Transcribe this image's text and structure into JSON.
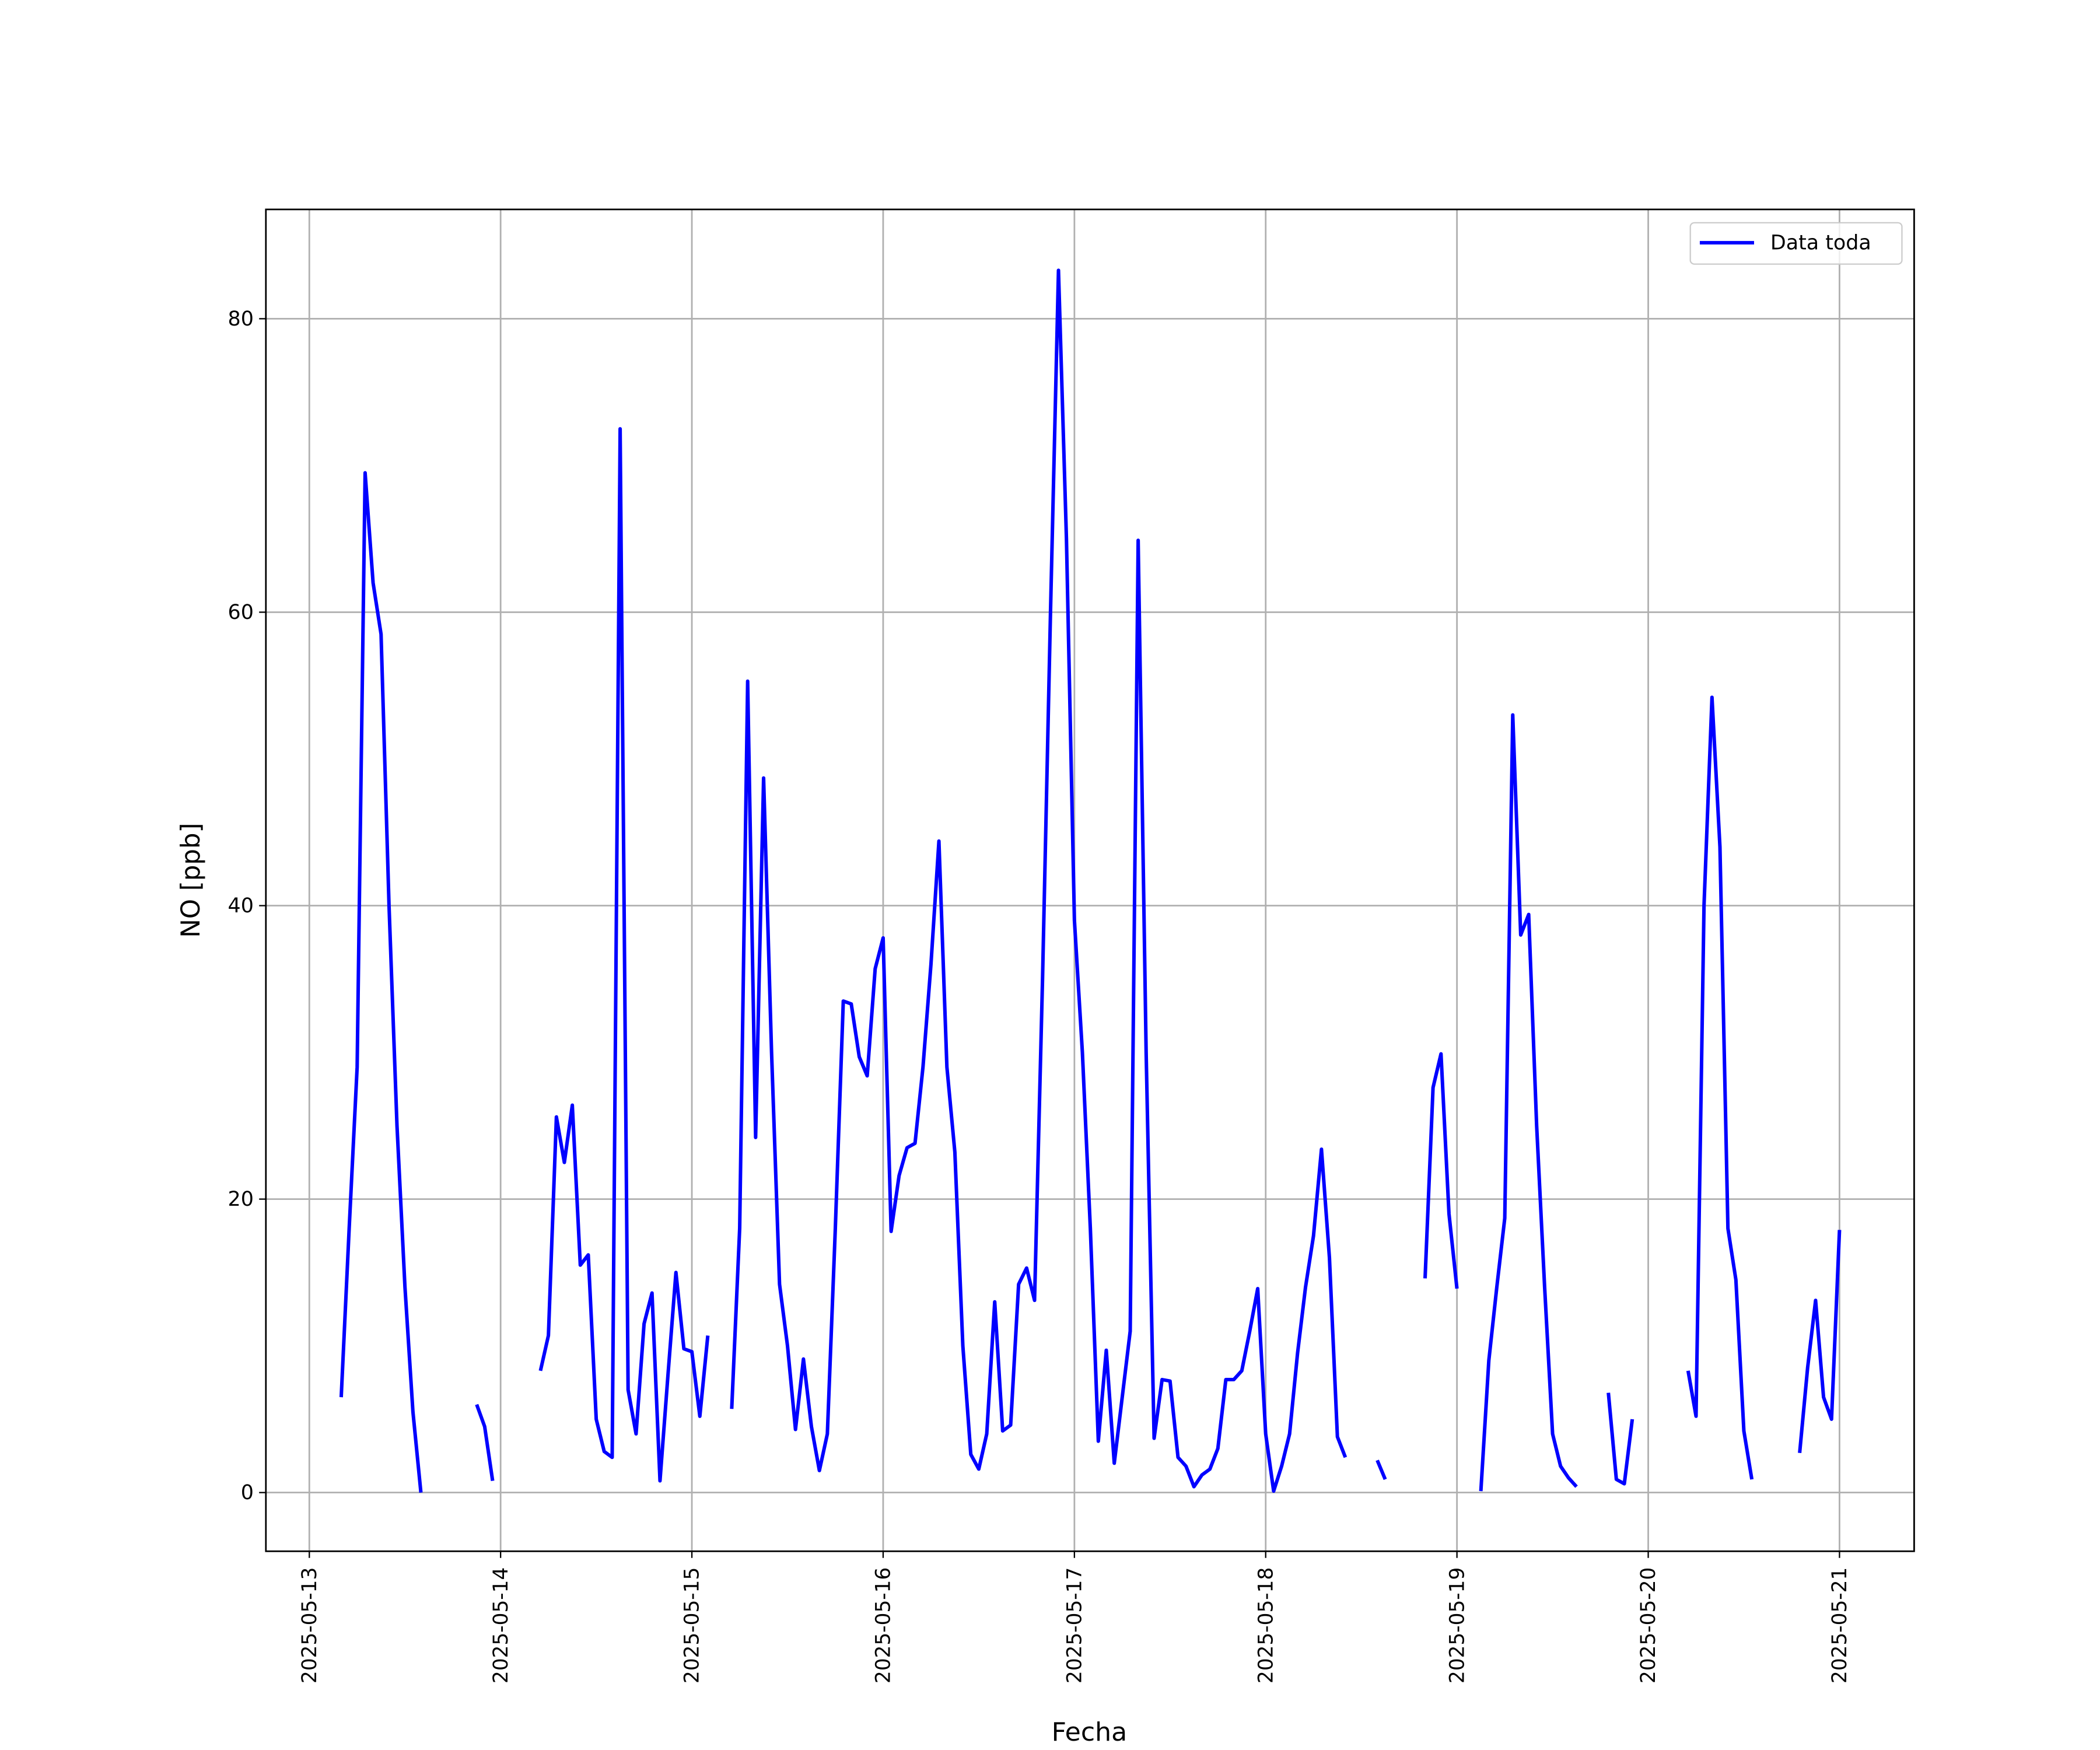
{
  "chart_data": {
    "type": "line",
    "xlabel": "Fecha",
    "ylabel": "NO [ppb]",
    "x": [
      "2025-05-13T04:00",
      "2025-05-13T05:00",
      "2025-05-13T06:00",
      "2025-05-13T07:00",
      "2025-05-13T08:00",
      "2025-05-13T09:00",
      "2025-05-13T10:00",
      "2025-05-13T11:00",
      "2025-05-13T12:00",
      "2025-05-13T13:00",
      "2025-05-13T14:00",
      "2025-05-13T15:00",
      "2025-05-13T16:00",
      "2025-05-13T17:00",
      "2025-05-13T18:00",
      "2025-05-13T19:00",
      "2025-05-13T20:00",
      "2025-05-13T21:00",
      "2025-05-13T22:00",
      "2025-05-13T23:00",
      "2025-05-14T00:00",
      "2025-05-14T01:00",
      "2025-05-14T02:00",
      "2025-05-14T03:00",
      "2025-05-14T04:00",
      "2025-05-14T05:00",
      "2025-05-14T06:00",
      "2025-05-14T07:00",
      "2025-05-14T08:00",
      "2025-05-14T09:00",
      "2025-05-14T10:00",
      "2025-05-14T11:00",
      "2025-05-14T12:00",
      "2025-05-14T13:00",
      "2025-05-14T14:00",
      "2025-05-14T15:00",
      "2025-05-14T16:00",
      "2025-05-14T17:00",
      "2025-05-14T18:00",
      "2025-05-14T19:00",
      "2025-05-14T20:00",
      "2025-05-14T21:00",
      "2025-05-14T22:00",
      "2025-05-14T23:00",
      "2025-05-15T00:00",
      "2025-05-15T01:00",
      "2025-05-15T02:00",
      "2025-05-15T03:00",
      "2025-05-15T04:00",
      "2025-05-15T05:00",
      "2025-05-15T06:00",
      "2025-05-15T07:00",
      "2025-05-15T08:00",
      "2025-05-15T09:00",
      "2025-05-15T10:00",
      "2025-05-15T11:00",
      "2025-05-15T12:00",
      "2025-05-15T13:00",
      "2025-05-15T14:00",
      "2025-05-15T15:00",
      "2025-05-15T16:00",
      "2025-05-15T17:00",
      "2025-05-15T18:00",
      "2025-05-15T19:00",
      "2025-05-15T20:00",
      "2025-05-15T21:00",
      "2025-05-15T22:00",
      "2025-05-15T23:00",
      "2025-05-16T00:00",
      "2025-05-16T01:00",
      "2025-05-16T02:00",
      "2025-05-16T03:00",
      "2025-05-16T04:00",
      "2025-05-16T05:00",
      "2025-05-16T06:00",
      "2025-05-16T07:00",
      "2025-05-16T08:00",
      "2025-05-16T09:00",
      "2025-05-16T10:00",
      "2025-05-16T11:00",
      "2025-05-16T12:00",
      "2025-05-16T13:00",
      "2025-05-16T14:00",
      "2025-05-16T15:00",
      "2025-05-16T16:00",
      "2025-05-16T17:00",
      "2025-05-16T18:00",
      "2025-05-16T19:00",
      "2025-05-16T20:00",
      "2025-05-16T21:00",
      "2025-05-16T22:00",
      "2025-05-16T23:00",
      "2025-05-17T00:00",
      "2025-05-17T01:00",
      "2025-05-17T02:00",
      "2025-05-17T03:00",
      "2025-05-17T04:00",
      "2025-05-17T05:00",
      "2025-05-17T06:00",
      "2025-05-17T07:00",
      "2025-05-17T08:00",
      "2025-05-17T09:00",
      "2025-05-17T10:00",
      "2025-05-17T11:00",
      "2025-05-17T12:00",
      "2025-05-17T13:00",
      "2025-05-17T14:00",
      "2025-05-17T15:00",
      "2025-05-17T16:00",
      "2025-05-17T17:00",
      "2025-05-17T18:00",
      "2025-05-17T19:00",
      "2025-05-17T20:00",
      "2025-05-17T21:00",
      "2025-05-17T22:00",
      "2025-05-17T23:00",
      "2025-05-18T00:00",
      "2025-05-18T01:00",
      "2025-05-18T02:00",
      "2025-05-18T03:00",
      "2025-05-18T04:00",
      "2025-05-18T05:00",
      "2025-05-18T06:00",
      "2025-05-18T07:00",
      "2025-05-18T08:00",
      "2025-05-18T09:00",
      "2025-05-18T10:00",
      "2025-05-18T11:00",
      "2025-05-18T12:00",
      "2025-05-18T13:00",
      "2025-05-18T14:00",
      "2025-05-18T15:00",
      "2025-05-18T16:00",
      "2025-05-18T17:00",
      "2025-05-18T18:00",
      "2025-05-18T19:00",
      "2025-05-18T20:00",
      "2025-05-18T21:00",
      "2025-05-18T22:00",
      "2025-05-18T23:00",
      "2025-05-19T00:00",
      "2025-05-19T01:00",
      "2025-05-19T02:00",
      "2025-05-19T03:00",
      "2025-05-19T04:00",
      "2025-05-19T05:00",
      "2025-05-19T06:00",
      "2025-05-19T07:00",
      "2025-05-19T08:00",
      "2025-05-19T09:00",
      "2025-05-19T10:00",
      "2025-05-19T11:00",
      "2025-05-19T12:00",
      "2025-05-19T13:00",
      "2025-05-19T14:00",
      "2025-05-19T15:00",
      "2025-05-19T16:00",
      "2025-05-19T17:00",
      "2025-05-19T18:00",
      "2025-05-19T19:00",
      "2025-05-19T20:00",
      "2025-05-19T21:00",
      "2025-05-19T22:00",
      "2025-05-19T23:00",
      "2025-05-20T00:00",
      "2025-05-20T01:00",
      "2025-05-20T02:00",
      "2025-05-20T03:00",
      "2025-05-20T04:00",
      "2025-05-20T05:00",
      "2025-05-20T06:00",
      "2025-05-20T07:00",
      "2025-05-20T08:00",
      "2025-05-20T09:00",
      "2025-05-20T10:00",
      "2025-05-20T11:00",
      "2025-05-20T12:00",
      "2025-05-20T13:00",
      "2025-05-20T14:00",
      "2025-05-20T15:00",
      "2025-05-20T16:00",
      "2025-05-20T17:00",
      "2025-05-20T18:00",
      "2025-05-20T19:00",
      "2025-05-20T20:00",
      "2025-05-20T21:00",
      "2025-05-20T22:00",
      "2025-05-20T23:00",
      "2025-05-21T00:00"
    ],
    "series": [
      {
        "name": "Data toda",
        "color": "#0000ff",
        "values": [
          6.5,
          18,
          29,
          69.5,
          62,
          58.5,
          40,
          25,
          14,
          5.5,
          0,
          null,
          null,
          null,
          null,
          null,
          null,
          6,
          4.5,
          0.8,
          null,
          null,
          null,
          null,
          null,
          8.3,
          10.7,
          25.6,
          22.5,
          26.4,
          15.5,
          16.2,
          5,
          2.8,
          2.4,
          72.5,
          7,
          4,
          11.5,
          13.6,
          0.8,
          8,
          15,
          9.8,
          9.6,
          5.2,
          10.7,
          null,
          null,
          5.7,
          18,
          55.3,
          24.2,
          48.7,
          30,
          14.2,
          10,
          4.3,
          9.1,
          4.5,
          1.5,
          4,
          18,
          33.5,
          33.3,
          29.7,
          28.4,
          35.7,
          37.8,
          17.8,
          21.6,
          23.5,
          23.8,
          29,
          36,
          44.4,
          29,
          23.2,
          10,
          2.6,
          1.6,
          4,
          13,
          4.2,
          4.6,
          14.2,
          15.3,
          13.1,
          35,
          60,
          83.3,
          65,
          39,
          30,
          18,
          3.5,
          9.7,
          2,
          6.5,
          11,
          64.9,
          30,
          3.7,
          7.7,
          7.6,
          2.4,
          1.8,
          0.4,
          1.2,
          1.6,
          3,
          7.7,
          7.7,
          8.3,
          11,
          13.9,
          4,
          0.1,
          1.8,
          4,
          9.5,
          14,
          17.5,
          23.4,
          16,
          3.8,
          2.4,
          null,
          null,
          null,
          2.2,
          0.9,
          null,
          null,
          null,
          null,
          14.6,
          27.6,
          29.9,
          19,
          13.9,
          null,
          null,
          0.1,
          9,
          14,
          18.7,
          53,
          38,
          39.4,
          25,
          14,
          4,
          1.8,
          1,
          0.4,
          null,
          null,
          null,
          6.8,
          0.9,
          0.6,
          5,
          null,
          null,
          null,
          null,
          null,
          null,
          8.3,
          5.2,
          40,
          54.2,
          44,
          18,
          14.5,
          4.2,
          0.9,
          null,
          null,
          null,
          null,
          null,
          2.7,
          8.5,
          13.1,
          6.5,
          5,
          17.9
        ]
      }
    ],
    "xlim": [
      "2025-05-12T18:33",
      "2025-05-21T09:22"
    ],
    "xticks": [
      "2025-05-13",
      "2025-05-14",
      "2025-05-15",
      "2025-05-16",
      "2025-05-17",
      "2025-05-18",
      "2025-05-19",
      "2025-05-20",
      "2025-05-21"
    ],
    "ylim": [
      -4,
      87.45
    ],
    "yticks": [
      0,
      20,
      40,
      60,
      80
    ],
    "grid": true,
    "legend": "upper right"
  }
}
